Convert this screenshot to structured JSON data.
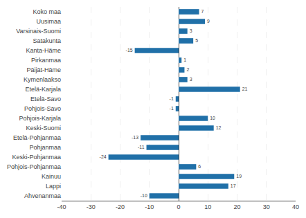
{
  "chart_data": {
    "type": "bar",
    "orientation": "horizontal",
    "categories": [
      "Koko maa",
      "Uusimaa",
      "Varsinais-Suomi",
      "Satakunta",
      "Kanta-Häme",
      "Pirkanmaa",
      "Päijät-Häme",
      "Kymenlaakso",
      "Etelä-Karjala",
      "Etelä-Savo",
      "Pohjois-Savo",
      "Pohjois-Karjala",
      "Keski-Suomi",
      "Etelä-Pohjanmaa",
      "Pohjanmaa",
      "Keski-Pohjanmaa",
      "Pohjois-Pohjanmaa",
      "Kainuu",
      "Lappi",
      "Ahvenanmaa"
    ],
    "values": [
      7,
      9,
      3,
      5,
      -15,
      1,
      2,
      3,
      21,
      -1,
      -1,
      10,
      12,
      -13,
      -11,
      -24,
      6,
      19,
      17,
      -10
    ],
    "color": "#2070a8",
    "xlim": [
      -40,
      40
    ],
    "xticks": [
      -40,
      -30,
      -20,
      -10,
      0,
      10,
      20,
      30,
      40
    ],
    "grid": true,
    "data_labels": true
  }
}
